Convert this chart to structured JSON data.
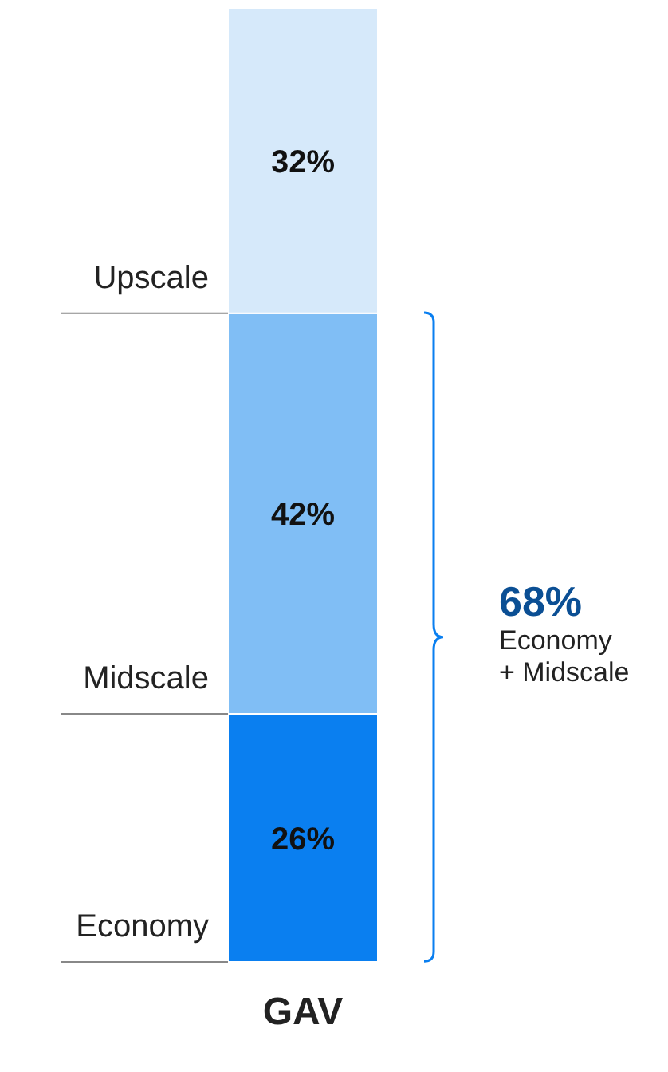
{
  "chart_data": {
    "type": "bar",
    "stacked": true,
    "categories": [
      "GAV"
    ],
    "series": [
      {
        "name": "Economy",
        "color": "#0a7ff0",
        "values": [
          26
        ],
        "value_labels": [
          "26%"
        ]
      },
      {
        "name": "Midscale",
        "color": "#80bef5",
        "values": [
          42
        ],
        "value_labels": [
          "42%"
        ]
      },
      {
        "name": "Upscale",
        "color": "#d6e9fa",
        "values": [
          32
        ],
        "value_labels": [
          "32%"
        ]
      }
    ],
    "annotations": [
      "68%",
      "Economy",
      "+ Midscale"
    ]
  }
}
